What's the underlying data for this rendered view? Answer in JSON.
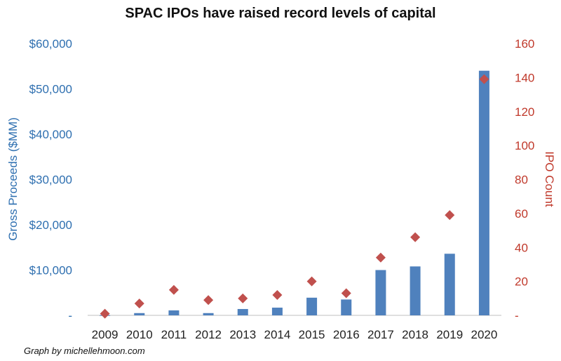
{
  "chart_data": {
    "type": "bar",
    "title": "SPAC IPOs have raised record levels of capital",
    "categories": [
      "2009",
      "2010",
      "2011",
      "2012",
      "2013",
      "2014",
      "2015",
      "2016",
      "2017",
      "2018",
      "2019",
      "2020"
    ],
    "series": [
      {
        "name": "Gross Proceeds ($MM)",
        "kind": "bar",
        "axis": "left",
        "color": "#4f81bd",
        "values": [
          40,
          500,
          1100,
          500,
          1400,
          1700,
          3900,
          3500,
          10000,
          10800,
          13600,
          54000
        ]
      },
      {
        "name": "IPO Count",
        "kind": "marker",
        "marker": "diamond",
        "axis": "right",
        "color": "#c0504d",
        "values": [
          1,
          7,
          15,
          9,
          10,
          12,
          20,
          13,
          34,
          46,
          59,
          139
        ]
      }
    ],
    "ylabel_left": "Gross Proceeds ($MM)",
    "ylabel_right": "IPO Count",
    "ylim_left": [
      0,
      60000
    ],
    "ylim_right": [
      0,
      160
    ],
    "yticks_left": [
      "-",
      "$10,000",
      "$20,000",
      "$30,000",
      "$40,000",
      "$50,000",
      "$60,000"
    ],
    "yticks_right": [
      "-",
      "20",
      "40",
      "60",
      "80",
      "100",
      "120",
      "140",
      "160"
    ],
    "grid": false,
    "legend": "none"
  },
  "footer": {
    "credit": "Graph by michellehmoon.com"
  }
}
